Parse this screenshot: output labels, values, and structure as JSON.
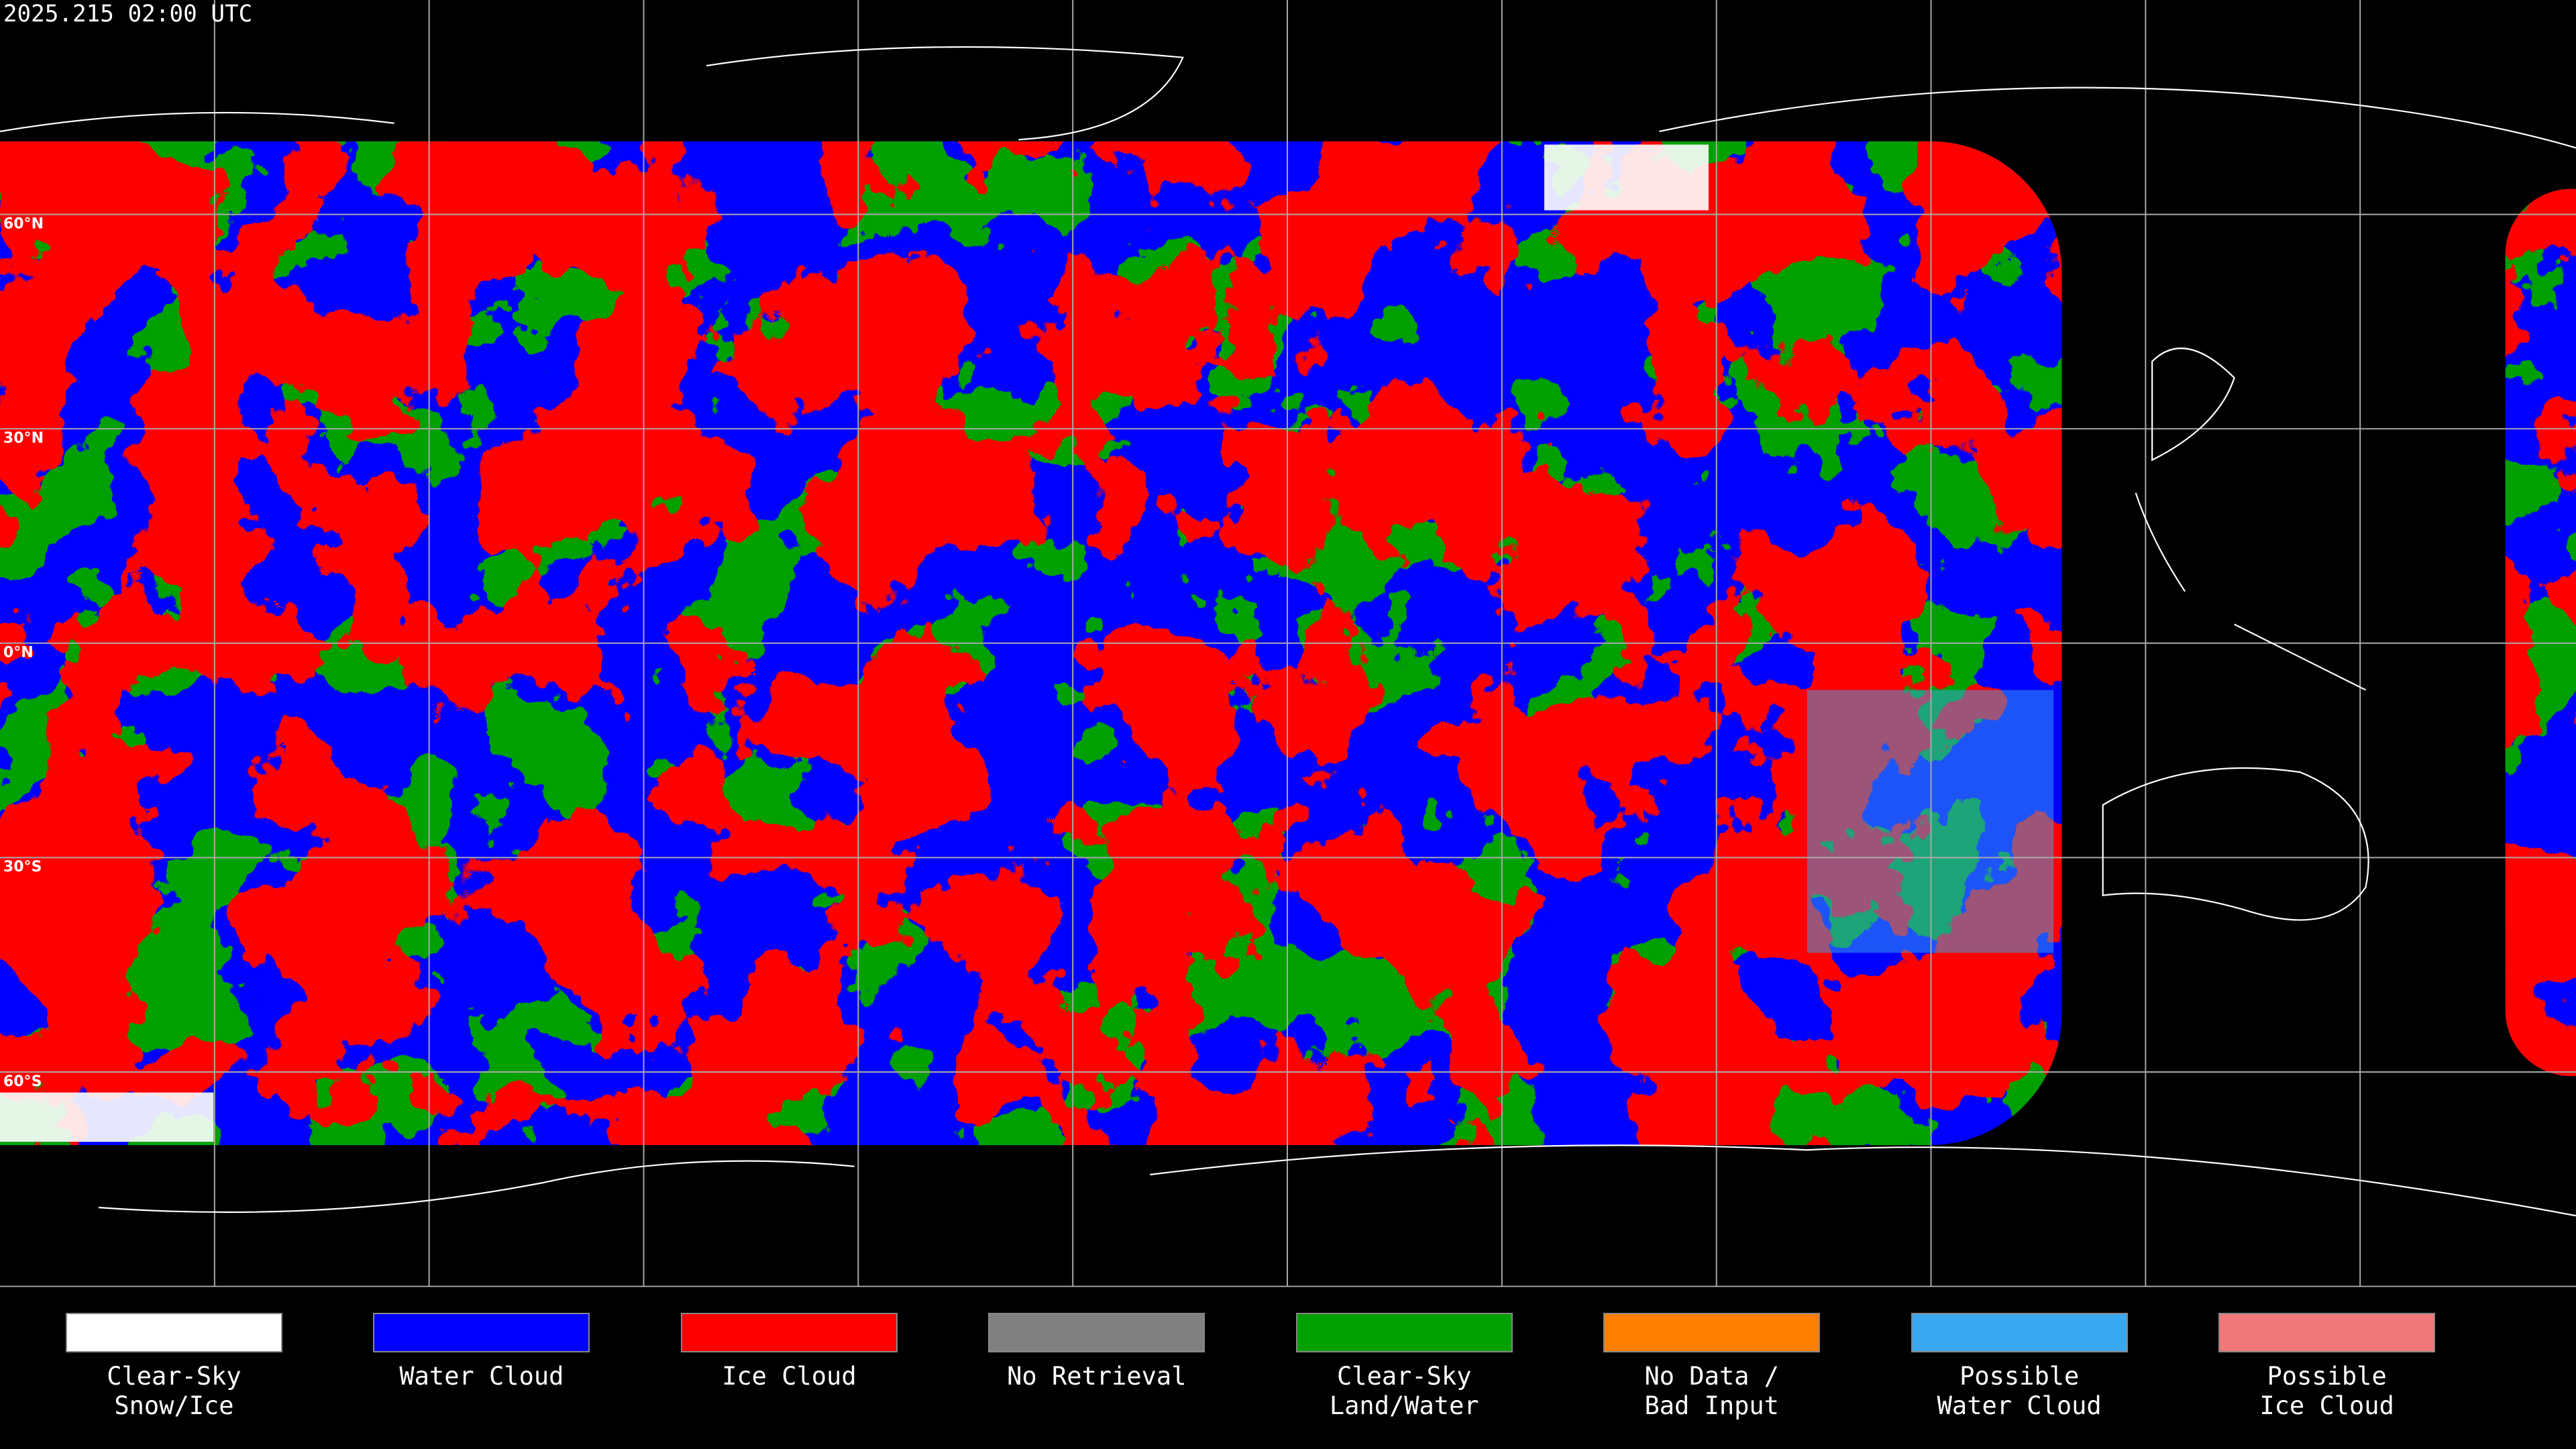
{
  "timestamp": "2025.215 02:00 UTC",
  "latitude_labels": [
    "60°N",
    "30°N",
    "0°N",
    "30°S",
    "60°S"
  ],
  "legend": [
    {
      "label": "Clear-Sky\nSnow/Ice",
      "color": "#ffffff"
    },
    {
      "label": "Water Cloud",
      "color": "#0000ff"
    },
    {
      "label": "Ice Cloud",
      "color": "#ff0000"
    },
    {
      "label": "No Retrieval",
      "color": "#808080"
    },
    {
      "label": "Clear-Sky\nLand/Water",
      "color": "#00a000"
    },
    {
      "label": "No Data /\nBad Input",
      "color": "#ff8000"
    },
    {
      "label": "Possible\nWater Cloud",
      "color": "#3aa8f0"
    },
    {
      "label": "Possible\nIce Cloud",
      "color": "#f07878"
    }
  ]
}
